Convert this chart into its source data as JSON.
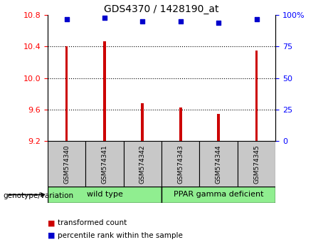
{
  "title": "GDS4370 / 1428190_at",
  "samples": [
    "GSM574340",
    "GSM574341",
    "GSM574342",
    "GSM574343",
    "GSM574344",
    "GSM574345"
  ],
  "bar_values": [
    10.4,
    10.47,
    9.68,
    9.63,
    9.55,
    10.35
  ],
  "percentile_values": [
    97,
    98,
    95,
    95,
    94,
    97
  ],
  "ylim_left": [
    9.2,
    10.8
  ],
  "ylim_right": [
    0,
    100
  ],
  "yticks_left": [
    9.2,
    9.6,
    10.0,
    10.4,
    10.8
  ],
  "yticks_right": [
    0,
    25,
    50,
    75,
    100
  ],
  "grid_values": [
    10.4,
    10.0,
    9.6
  ],
  "bar_color": "#cc0000",
  "scatter_color": "#0000cc",
  "bg_color": "#c8c8c8",
  "wild_type_label": "wild type",
  "ppar_label": "PPAR gamma deficient",
  "genotype_color": "#90ee90",
  "genotype_label": "genotype/variation",
  "legend_bar_label": "transformed count",
  "legend_scatter_label": "percentile rank within the sample",
  "bar_width": 0.07
}
